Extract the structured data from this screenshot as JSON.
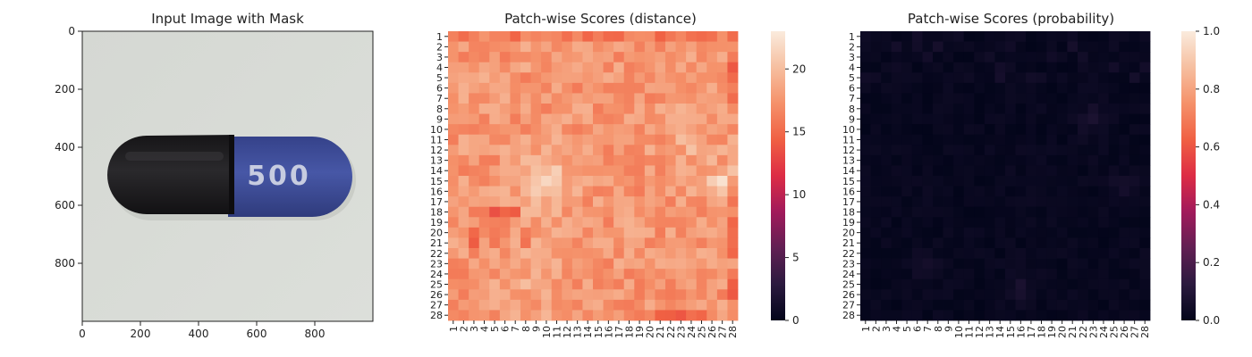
{
  "chart_data": [
    {
      "type": "image",
      "title": "Input Image with Mask",
      "x_ticks": [
        "0",
        "200",
        "400",
        "600",
        "800"
      ],
      "y_ticks": [
        "0",
        "200",
        "400",
        "600",
        "800"
      ],
      "xlim": [
        0,
        1000
      ],
      "ylim": [
        0,
        1000
      ],
      "image_text": "500",
      "colors": {
        "background": "#d7dad6",
        "cap_dark": "#1d1c1f",
        "cap_blue": "#3f4f99"
      }
    },
    {
      "type": "heatmap",
      "title": "Patch-wise Scores (distance)",
      "rows": 28,
      "cols": 28,
      "x_tick_labels": [
        "1",
        "2",
        "3",
        "4",
        "5",
        "6",
        "7",
        "8",
        "9",
        "10",
        "11",
        "12",
        "13",
        "14",
        "15",
        "16",
        "17",
        "18",
        "19",
        "20",
        "21",
        "22",
        "23",
        "24",
        "25",
        "26",
        "27",
        "28"
      ],
      "y_tick_labels": [
        "1",
        "2",
        "3",
        "4",
        "5",
        "6",
        "7",
        "8",
        "9",
        "10",
        "11",
        "12",
        "13",
        "14",
        "15",
        "16",
        "17",
        "18",
        "19",
        "20",
        "21",
        "22",
        "23",
        "24",
        "25",
        "26",
        "27",
        "28"
      ],
      "colorbar": {
        "min": 0,
        "max": 23,
        "ticks": [
          "0",
          "5",
          "10",
          "15",
          "20"
        ],
        "tick_values": [
          0,
          5,
          10,
          15,
          20
        ],
        "colormap": "rocket"
      },
      "value_summary": {
        "typical_min": 14,
        "typical_max": 22.5
      }
    },
    {
      "type": "heatmap",
      "title": "Patch-wise Scores (probability)",
      "rows": 28,
      "cols": 28,
      "x_tick_labels": [
        "1",
        "2",
        "3",
        "4",
        "5",
        "6",
        "7",
        "8",
        "9",
        "10",
        "11",
        "12",
        "13",
        "14",
        "15",
        "16",
        "17",
        "18",
        "19",
        "20",
        "21",
        "22",
        "23",
        "24",
        "25",
        "26",
        "27",
        "28"
      ],
      "y_tick_labels": [
        "1",
        "2",
        "3",
        "4",
        "5",
        "6",
        "7",
        "8",
        "9",
        "10",
        "11",
        "12",
        "13",
        "14",
        "15",
        "16",
        "17",
        "18",
        "19",
        "20",
        "21",
        "22",
        "23",
        "24",
        "25",
        "26",
        "27",
        "28"
      ],
      "colorbar": {
        "min": 0.0,
        "max": 1.0,
        "ticks": [
          "0.0",
          "0.2",
          "0.4",
          "0.6",
          "0.8",
          "1.0"
        ],
        "tick_values": [
          0.0,
          0.2,
          0.4,
          0.6,
          0.8,
          1.0
        ],
        "colormap": "rocket"
      },
      "value_summary": {
        "typical_min": 0.0,
        "typical_max": 0.1
      }
    }
  ]
}
